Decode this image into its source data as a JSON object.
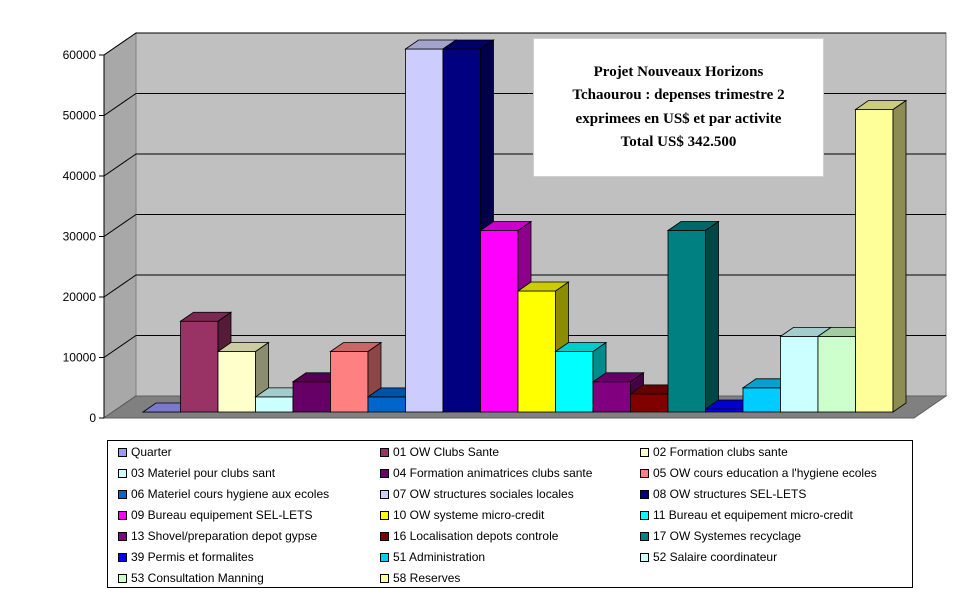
{
  "chart_data": {
    "type": "bar",
    "title_lines": [
      "Projet Nouveaux Horizons",
      "Tchaourou : depenses trimestre 2",
      "exprimees en US$ et par activite",
      "Total US$ 342.500"
    ],
    "ylim": [
      0,
      60000
    ],
    "yticks": [
      "0",
      "10000",
      "20000",
      "30000",
      "40000",
      "50000",
      "60000"
    ],
    "grid": true,
    "legend_position": "bottom",
    "style": "3d-column",
    "series": [
      {
        "name": "Quarter",
        "value": 0,
        "color": "#9999FF"
      },
      {
        "name": "01 OW Clubs Sante",
        "value": 15000,
        "color": "#993366"
      },
      {
        "name": "02 Formation clubs sante",
        "value": 10000,
        "color": "#FFFFCC"
      },
      {
        "name": "03 Materiel pour clubs sant",
        "value": 2500,
        "color": "#CCFFFF"
      },
      {
        "name": "04 Formation animatrices clubs sante",
        "value": 5000,
        "color": "#660066"
      },
      {
        "name": "05 OW cours education a l'hygiene ecoles",
        "value": 10000,
        "color": "#FF8080"
      },
      {
        "name": "06 Materiel cours hygiene aux ecoles",
        "value": 2500,
        "color": "#0066CC"
      },
      {
        "name": "07 OW structures sociales locales",
        "value": 60000,
        "color": "#CCCCFF"
      },
      {
        "name": "08 OW structures SEL-LETS",
        "value": 60000,
        "color": "#000080"
      },
      {
        "name": "09 Bureau equipement SEL-LETS",
        "value": 30000,
        "color": "#FF00FF"
      },
      {
        "name": "10 OW systeme micro-credit",
        "value": 20000,
        "color": "#FFFF00"
      },
      {
        "name": "11 Bureau et equipement micro-credit",
        "value": 10000,
        "color": "#00FFFF"
      },
      {
        "name": "13 Shovel/preparation depot gypse",
        "value": 5000,
        "color": "#800080"
      },
      {
        "name": "16 Localisation depots controle",
        "value": 3000,
        "color": "#800000"
      },
      {
        "name": "17 OW Systemes recyclage",
        "value": 30000,
        "color": "#008080"
      },
      {
        "name": "39 Permis et formalites",
        "value": 500,
        "color": "#0000FF"
      },
      {
        "name": "51 Administration",
        "value": 4000,
        "color": "#00CCFF"
      },
      {
        "name": "52 Salaire coordinateur",
        "value": 12500,
        "color": "#CCFFFF"
      },
      {
        "name": "53 Consultation Manning",
        "value": 12500,
        "color": "#CCFFCC"
      },
      {
        "name": "58 Reserves",
        "value": 50000,
        "color": "#FFFF99"
      }
    ]
  }
}
